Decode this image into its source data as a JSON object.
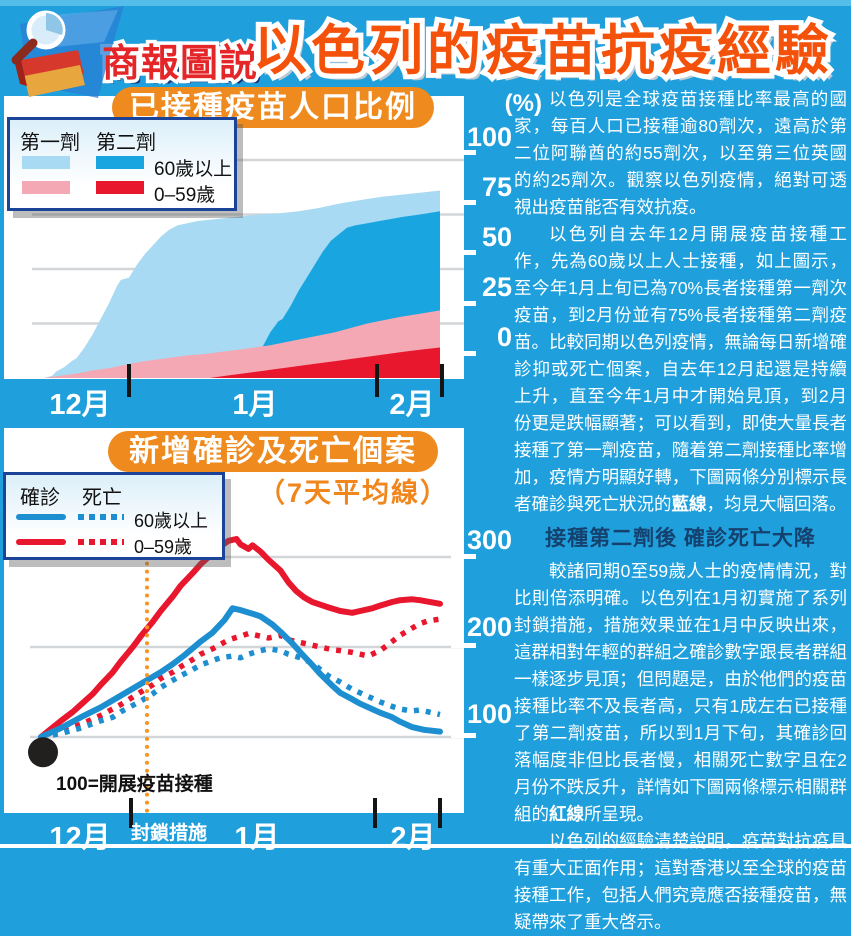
{
  "header": {
    "logo_text": "商報圖説",
    "title": "以色列的疫苗抗疫經驗"
  },
  "colors": {
    "background": "#1FA0DC",
    "pill_orange": "#EE8A1E",
    "title_orange": "#F4520B",
    "legend_border": "#1B4397",
    "area_light_blue": "#A9DAF3",
    "area_dark_blue": "#19A6E0",
    "area_pink": "#F3A8B3",
    "area_red": "#E8172D",
    "line_blue": "#1D8FD1",
    "line_red": "#E8172D",
    "lockdown_orange": "#F8941E",
    "subhead_navy": "#15416E"
  },
  "chart_data": [
    {
      "type": "area",
      "title": "已接種疫苗人口比例",
      "unit": "(%)",
      "ylim": [
        0,
        100
      ],
      "y_ticks": [
        100,
        75,
        50,
        25,
        0
      ],
      "x_labels": [
        "12月",
        "1月",
        "2月"
      ],
      "legend": {
        "columns": [
          "第一劑",
          "第二劑"
        ],
        "rows": [
          "60歲以上",
          "0–59歲"
        ]
      },
      "series": [
        {
          "name": "第一劑 60歲以上",
          "color": "#A9DAF3",
          "points": [
            [
              0.02,
              0
            ],
            [
              0.04,
              1
            ],
            [
              0.05,
              3
            ],
            [
              0.07,
              5
            ],
            [
              0.09,
              8
            ],
            [
              0.1,
              9
            ],
            [
              0.12,
              14
            ],
            [
              0.14,
              20
            ],
            [
              0.16,
              27
            ],
            [
              0.18,
              34
            ],
            [
              0.2,
              42
            ],
            [
              0.21,
              45
            ],
            [
              0.23,
              46
            ],
            [
              0.25,
              52
            ],
            [
              0.27,
              57
            ],
            [
              0.29,
              61
            ],
            [
              0.31,
              65
            ],
            [
              0.33,
              68
            ],
            [
              0.35,
              70
            ],
            [
              0.4,
              72
            ],
            [
              0.45,
              73
            ],
            [
              0.5,
              74
            ],
            [
              0.55,
              75
            ],
            [
              0.6,
              75.5
            ],
            [
              0.65,
              76.5
            ],
            [
              0.7,
              78
            ],
            [
              0.75,
              80
            ],
            [
              0.8,
              81.5
            ],
            [
              0.85,
              83
            ],
            [
              0.9,
              84
            ],
            [
              0.95,
              85
            ],
            [
              1,
              86
            ]
          ]
        },
        {
          "name": "第二劑 60歲以上",
          "color": "#19A6E0",
          "points": [
            [
              0.52,
              0
            ],
            [
              0.54,
              7
            ],
            [
              0.56,
              14
            ],
            [
              0.58,
              21
            ],
            [
              0.6,
              26
            ],
            [
              0.61,
              27
            ],
            [
              0.63,
              33
            ],
            [
              0.65,
              40
            ],
            [
              0.67,
              46
            ],
            [
              0.69,
              52
            ],
            [
              0.71,
              58
            ],
            [
              0.73,
              63
            ],
            [
              0.75,
              66
            ],
            [
              0.77,
              69
            ],
            [
              0.79,
              70
            ],
            [
              0.82,
              71
            ],
            [
              0.85,
              72
            ],
            [
              0.88,
              73
            ],
            [
              0.91,
              74
            ],
            [
              0.95,
              75
            ],
            [
              1,
              76.5
            ]
          ]
        },
        {
          "name": "第一劑 0-59歲",
          "color": "#F3A8B3",
          "points": [
            [
              0.02,
              0
            ],
            [
              0.06,
              1
            ],
            [
              0.1,
              2
            ],
            [
              0.14,
              3.5
            ],
            [
              0.18,
              4.5
            ],
            [
              0.22,
              6
            ],
            [
              0.26,
              7.5
            ],
            [
              0.3,
              8.5
            ],
            [
              0.34,
              9.5
            ],
            [
              0.38,
              10.5
            ],
            [
              0.42,
              11
            ],
            [
              0.46,
              12
            ],
            [
              0.5,
              13
            ],
            [
              0.54,
              14
            ],
            [
              0.58,
              15
            ],
            [
              0.62,
              16.5
            ],
            [
              0.66,
              18
            ],
            [
              0.7,
              19.5
            ],
            [
              0.74,
              21
            ],
            [
              0.78,
              23
            ],
            [
              0.82,
              25
            ],
            [
              0.86,
              26.5
            ],
            [
              0.9,
              28
            ],
            [
              0.95,
              29.5
            ],
            [
              1,
              31
            ]
          ]
        },
        {
          "name": "第二劑 0-59歲",
          "color": "#E8172D",
          "points": [
            [
              0.43,
              0
            ],
            [
              0.47,
              1
            ],
            [
              0.51,
              2
            ],
            [
              0.55,
              3
            ],
            [
              0.59,
              4
            ],
            [
              0.63,
              5
            ],
            [
              0.67,
              6
            ],
            [
              0.71,
              7
            ],
            [
              0.75,
              8
            ],
            [
              0.79,
              9
            ],
            [
              0.83,
              10
            ],
            [
              0.87,
              11
            ],
            [
              0.91,
              12
            ],
            [
              0.95,
              13
            ],
            [
              1,
              14
            ]
          ]
        }
      ]
    },
    {
      "type": "line",
      "title": "新增確診及死亡個案",
      "subtitle": "（7天平均線）",
      "baseline_note": "100=開展疫苗接種",
      "lockdown_label": "封鎖措施",
      "ylim": [
        80,
        330
      ],
      "y_ticks": [
        300,
        200,
        100
      ],
      "x_labels": [
        "12月",
        "1月",
        "2月"
      ],
      "legend": {
        "columns": [
          "確診",
          "死亡"
        ],
        "rows": [
          "60歲以上",
          "0–59歲"
        ]
      },
      "series": [
        {
          "name": "確診 0-59歲",
          "color": "#E8172D",
          "style": "solid",
          "points": [
            [
              0,
              100
            ],
            [
              0.05,
              118
            ],
            [
              0.08,
              128
            ],
            [
              0.1,
              136
            ],
            [
              0.13,
              148
            ],
            [
              0.15,
              158
            ],
            [
              0.18,
              172
            ],
            [
              0.2,
              184
            ],
            [
              0.23,
              200
            ],
            [
              0.25,
              212
            ],
            [
              0.28,
              228
            ],
            [
              0.3,
              240
            ],
            [
              0.33,
              256
            ],
            [
              0.35,
              268
            ],
            [
              0.38,
              282
            ],
            [
              0.4,
              292
            ],
            [
              0.43,
              304
            ],
            [
              0.45,
              312
            ],
            [
              0.47,
              318
            ],
            [
              0.49,
              320
            ],
            [
              0.5,
              314
            ],
            [
              0.52,
              309
            ],
            [
              0.53,
              313
            ],
            [
              0.55,
              306
            ],
            [
              0.57,
              297
            ],
            [
              0.6,
              285
            ],
            [
              0.62,
              272
            ],
            [
              0.64,
              262
            ],
            [
              0.66,
              255
            ],
            [
              0.68,
              250
            ],
            [
              0.7,
              247
            ],
            [
              0.72,
              244
            ],
            [
              0.75,
              240
            ],
            [
              0.78,
              238
            ],
            [
              0.8,
              240
            ],
            [
              0.83,
              243
            ],
            [
              0.85,
              246
            ],
            [
              0.88,
              250
            ],
            [
              0.9,
              252
            ],
            [
              0.93,
              253
            ],
            [
              0.95,
              252
            ],
            [
              1,
              248
            ]
          ]
        },
        {
          "name": "確診 60歲以上",
          "color": "#1D8FD1",
          "style": "solid",
          "points": [
            [
              0,
              100
            ],
            [
              0.05,
              110
            ],
            [
              0.1,
              122
            ],
            [
              0.15,
              133
            ],
            [
              0.2,
              146
            ],
            [
              0.25,
              159
            ],
            [
              0.3,
              172
            ],
            [
              0.33,
              181
            ],
            [
              0.36,
              191
            ],
            [
              0.4,
              206
            ],
            [
              0.43,
              216
            ],
            [
              0.46,
              230
            ],
            [
              0.48,
              243
            ],
            [
              0.5,
              241
            ],
            [
              0.53,
              237
            ],
            [
              0.55,
              234
            ],
            [
              0.58,
              225
            ],
            [
              0.6,
              217
            ],
            [
              0.63,
              204
            ],
            [
              0.65,
              194
            ],
            [
              0.68,
              180
            ],
            [
              0.7,
              170
            ],
            [
              0.73,
              157
            ],
            [
              0.75,
              149
            ],
            [
              0.78,
              142
            ],
            [
              0.8,
              137
            ],
            [
              0.83,
              131
            ],
            [
              0.85,
              127
            ],
            [
              0.88,
              122
            ],
            [
              0.9,
              117
            ],
            [
              0.93,
              111
            ],
            [
              0.96,
              108
            ],
            [
              1,
              106
            ]
          ]
        },
        {
          "name": "死亡 0-59歲",
          "color": "#E8172D",
          "style": "dotted",
          "points": [
            [
              0,
              100
            ],
            [
              0.05,
              107
            ],
            [
              0.1,
              114
            ],
            [
              0.15,
              124
            ],
            [
              0.2,
              136
            ],
            [
              0.25,
              150
            ],
            [
              0.28,
              158
            ],
            [
              0.3,
              165
            ],
            [
              0.33,
              172
            ],
            [
              0.35,
              178
            ],
            [
              0.38,
              186
            ],
            [
              0.4,
              192
            ],
            [
              0.43,
              198
            ],
            [
              0.45,
              203
            ],
            [
              0.47,
              208
            ],
            [
              0.5,
              212
            ],
            [
              0.52,
              215
            ],
            [
              0.55,
              212
            ],
            [
              0.57,
              210
            ],
            [
              0.6,
              213
            ],
            [
              0.62,
              208
            ],
            [
              0.65,
              205
            ],
            [
              0.68,
              202
            ],
            [
              0.7,
              200
            ],
            [
              0.73,
              197
            ],
            [
              0.75,
              196
            ],
            [
              0.78,
              194
            ],
            [
              0.8,
              192
            ],
            [
              0.82,
              190
            ],
            [
              0.85,
              196
            ],
            [
              0.88,
              206
            ],
            [
              0.9,
              213
            ],
            [
              0.93,
              221
            ],
            [
              0.95,
              226
            ],
            [
              0.97,
              229
            ],
            [
              1,
              231
            ]
          ]
        },
        {
          "name": "死亡 60歲以上",
          "color": "#1D8FD1",
          "style": "dotted",
          "points": [
            [
              0,
              100
            ],
            [
              0.05,
              104
            ],
            [
              0.1,
              110
            ],
            [
              0.15,
              118
            ],
            [
              0.18,
              122
            ],
            [
              0.2,
              128
            ],
            [
              0.25,
              140
            ],
            [
              0.28,
              148
            ],
            [
              0.3,
              155
            ],
            [
              0.33,
              163
            ],
            [
              0.35,
              168
            ],
            [
              0.38,
              175
            ],
            [
              0.4,
              180
            ],
            [
              0.43,
              185
            ],
            [
              0.45,
              188
            ],
            [
              0.48,
              190
            ],
            [
              0.5,
              188
            ],
            [
              0.52,
              192
            ],
            [
              0.55,
              196
            ],
            [
              0.57,
              198
            ],
            [
              0.6,
              196
            ],
            [
              0.62,
              192
            ],
            [
              0.65,
              188
            ],
            [
              0.68,
              182
            ],
            [
              0.7,
              175
            ],
            [
              0.72,
              168
            ],
            [
              0.75,
              161
            ],
            [
              0.78,
              153
            ],
            [
              0.8,
              149
            ],
            [
              0.83,
              143
            ],
            [
              0.85,
              139
            ],
            [
              0.88,
              134
            ],
            [
              0.9,
              131
            ],
            [
              0.93,
              129
            ],
            [
              0.95,
              130
            ],
            [
              0.97,
              128
            ],
            [
              1,
              125
            ]
          ]
        }
      ]
    }
  ],
  "right_column": {
    "p1": "以色列是全球疫苗接種比率最高的國家，每百人口已接種逾80劑次，遠高於第二位阿聯酋的約55劑次，以至第三位英國的約25劑次。觀察以色列疫情，絕對可透視出疫苗能否有效抗疫。",
    "p2_pre": "以色列自去年12月開展疫苗接種工作，先為60歲以上人士接種，如上圖示，至今年1月上旬已為70%長者接種第一劑次疫苗，到2月份並有75%長者接種第二劑疫苗。比較同期以色列疫情，無論每日新增確診抑或死亡個案，自去年12月起還是持續上升，直至今年1月中才開始見頂，到2月份更是跌幅顯著；可以看到，即使大量長者接種了第一劑疫苗，隨着第二劑接種比率增加，疫情方明顯好轉，下圖兩條分別標示長者確診與死亡狀況的",
    "p2_bold": "藍線",
    "p2_post": "，均見大幅回落。",
    "subhead": "接種第二劑後 確診死亡大降",
    "p3_pre": "較諸同期0至59歲人士的疫情情況，對比則倍添明確。以色列在1月初實施了系列封鎖措施，措施效果並在1月中反映出來，這群相對年輕的群組之確診數字跟長者群組一樣逐步見頂；但問題是，由於他們的疫苗接種比率不及長者高，只有1成左右已接種了第二劑疫苗，所以到1月下旬，其確診回落幅度非但比長者慢，相關死亡數字且在2月份不跌反升，詳情如下圖兩條標示相關群組的",
    "p3_bold": "紅線",
    "p3_post": "所呈現。",
    "p4": "以色列的經驗清楚說明，疫苗對抗疫具有重大正面作用；這對香港以至全球的疫苗接種工作，包括人們究竟應否接種疫苗，無疑帶來了重大啓示。"
  }
}
